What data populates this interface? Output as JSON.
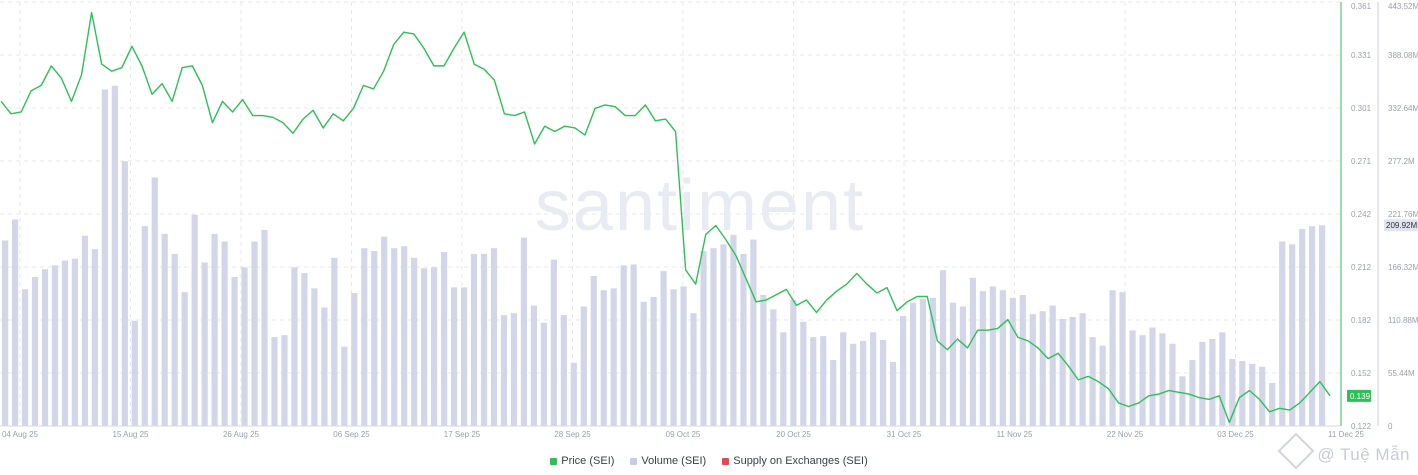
{
  "watermark": "santiment",
  "credit": "@ Tuệ Mẫn",
  "colors": {
    "price": "#2fbf58",
    "volume": "#d3d6e8",
    "supply": "#e8484f",
    "axis_text": "#9aa0ad",
    "grid": "#e6e8ee"
  },
  "legend": [
    {
      "label": "Price (SEI)",
      "color": "#2fbf58"
    },
    {
      "label": "Volume (SEI)",
      "color": "#c9cde3"
    },
    {
      "label": "Supply on Exchanges (SEI)",
      "color": "#e8484f"
    }
  ],
  "chart_data": {
    "type": "line",
    "title": "",
    "x_tick_labels": [
      "04 Aug 25",
      "15 Aug 25",
      "26 Aug 25",
      "06 Sep 25",
      "17 Sep 25",
      "28 Sep 25",
      "09 Oct 25",
      "20 Oct 25",
      "31 Oct 25",
      "11 Nov 25",
      "22 Nov 25",
      "03 Dec 25",
      "11 Dec 25"
    ],
    "price_axis": {
      "ticks": [
        "0.122",
        "0.152",
        "0.182",
        "0.212",
        "0.242",
        "0.271",
        "0.301",
        "0.331",
        "0.361"
      ],
      "ylim": [
        0.122,
        0.361
      ],
      "current_label": "0.139"
    },
    "volume_axis": {
      "ticks": [
        "0",
        "55.44M",
        "110.88M",
        "166.32M",
        "221.76M",
        "277.2M",
        "332.64M",
        "388.08M",
        "443.52M"
      ],
      "ylim": [
        0,
        443520000
      ],
      "current_label": "209.92M"
    },
    "series": [
      {
        "name": "Price (SEI)",
        "axis": "left",
        "values": [
          0.305,
          0.298,
          0.299,
          0.311,
          0.314,
          0.325,
          0.318,
          0.305,
          0.32,
          0.355,
          0.326,
          0.322,
          0.324,
          0.336,
          0.325,
          0.309,
          0.315,
          0.305,
          0.324,
          0.325,
          0.314,
          0.293,
          0.305,
          0.299,
          0.306,
          0.297,
          0.297,
          0.296,
          0.293,
          0.287,
          0.295,
          0.3,
          0.29,
          0.298,
          0.294,
          0.301,
          0.314,
          0.312,
          0.322,
          0.337,
          0.344,
          0.343,
          0.335,
          0.325,
          0.325,
          0.335,
          0.344,
          0.326,
          0.323,
          0.317,
          0.298,
          0.297,
          0.299,
          0.281,
          0.291,
          0.288,
          0.291,
          0.29,
          0.286,
          0.301,
          0.303,
          0.302,
          0.297,
          0.297,
          0.303,
          0.294,
          0.295,
          0.288,
          0.21,
          0.202,
          0.23,
          0.235,
          0.227,
          0.218,
          0.205,
          0.192,
          0.193,
          0.196,
          0.199,
          0.19,
          0.193,
          0.186,
          0.193,
          0.198,
          0.202,
          0.208,
          0.202,
          0.197,
          0.2,
          0.187,
          0.192,
          0.195,
          0.195,
          0.17,
          0.165,
          0.171,
          0.166,
          0.176,
          0.176,
          0.177,
          0.182,
          0.172,
          0.17,
          0.166,
          0.16,
          0.163,
          0.156,
          0.148,
          0.15,
          0.147,
          0.143,
          0.135,
          0.133,
          0.135,
          0.139,
          0.14,
          0.142,
          0.141,
          0.14,
          0.138,
          0.137,
          0.139,
          0.124,
          0.138,
          0.142,
          0.137,
          0.13,
          0.132,
          0.131,
          0.135,
          0.141,
          0.147,
          0.139
        ]
      },
      {
        "name": "Volume (SEI)",
        "axis": "right",
        "values": [
          194,
          216,
          143,
          156,
          164,
          168,
          173,
          175,
          199,
          185,
          352,
          356,
          277,
          110,
          209,
          260,
          201,
          180,
          140,
          221,
          171,
          201,
          193,
          156,
          166,
          193,
          205,
          93,
          95,
          166,
          160,
          144,
          124,
          176,
          83,
          139,
          186,
          183,
          198,
          186,
          188,
          176,
          165,
          166,
          182,
          145,
          145,
          180,
          180,
          186,
          116,
          118,
          197,
          126,
          108,
          174,
          116,
          66,
          125,
          157,
          142,
          144,
          168,
          169,
          130,
          135,
          162,
          143,
          146,
          118,
          183,
          186,
          190,
          200,
          180,
          195,
          137,
          122,
          98,
          132,
          109,
          93,
          94,
          69,
          98,
          86,
          89,
          98,
          90,
          67,
          115,
          129,
          133,
          134,
          163,
          129,
          125,
          155,
          141,
          146,
          142,
          134,
          137,
          117,
          120,
          126,
          112,
          114,
          118,
          93,
          84,
          142,
          140,
          100,
          95,
          103,
          97,
          86,
          52,
          69,
          88,
          91,
          98,
          70,
          68,
          65,
          62,
          45,
          193,
          190,
          206,
          209,
          210
        ]
      }
    ],
    "grid": true,
    "legend_position": "bottom-center"
  }
}
